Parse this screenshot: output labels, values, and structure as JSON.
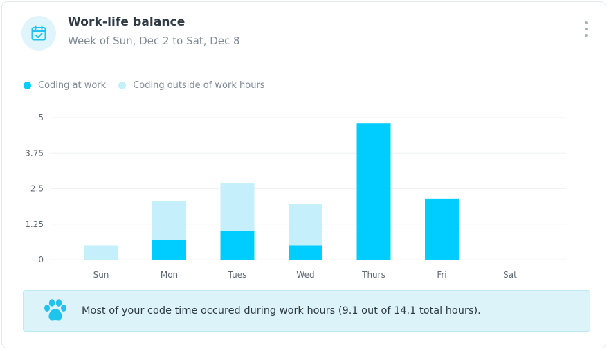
{
  "header": {
    "title": "Work-life balance",
    "subtitle": "Week of Sun, Dec 2 to Sat, Dec 8",
    "icon": "calendar-check-icon",
    "menu_icon": "kebab-menu-icon"
  },
  "colors": {
    "at_work": "#00cdff",
    "outside_work": "#c5effb",
    "icon_accent": "#1fc3ec",
    "grid": "#eef2f5"
  },
  "chart_data": {
    "type": "bar",
    "stacked": true,
    "categories": [
      "Sun",
      "Mon",
      "Tues",
      "Wed",
      "Thurs",
      "Fri",
      "Sat"
    ],
    "series": [
      {
        "name": "Coding at work",
        "values": [
          0,
          0.7,
          1.0,
          0.5,
          4.8,
          2.15,
          0
        ]
      },
      {
        "name": "Coding outside of work hours",
        "values": [
          0.5,
          1.35,
          1.7,
          1.45,
          0,
          0,
          0
        ]
      }
    ],
    "y_ticks": [
      "0",
      "1.25",
      "2.5",
      "3.75",
      "5"
    ],
    "ylim": [
      0,
      5
    ],
    "xlabel": "",
    "ylabel": "",
    "legend_position": "top-left",
    "grid": true
  },
  "notice": {
    "icon": "paw-icon",
    "text": "Most of your code time occured during work hours (9.1 out of 14.1 total hours)."
  }
}
